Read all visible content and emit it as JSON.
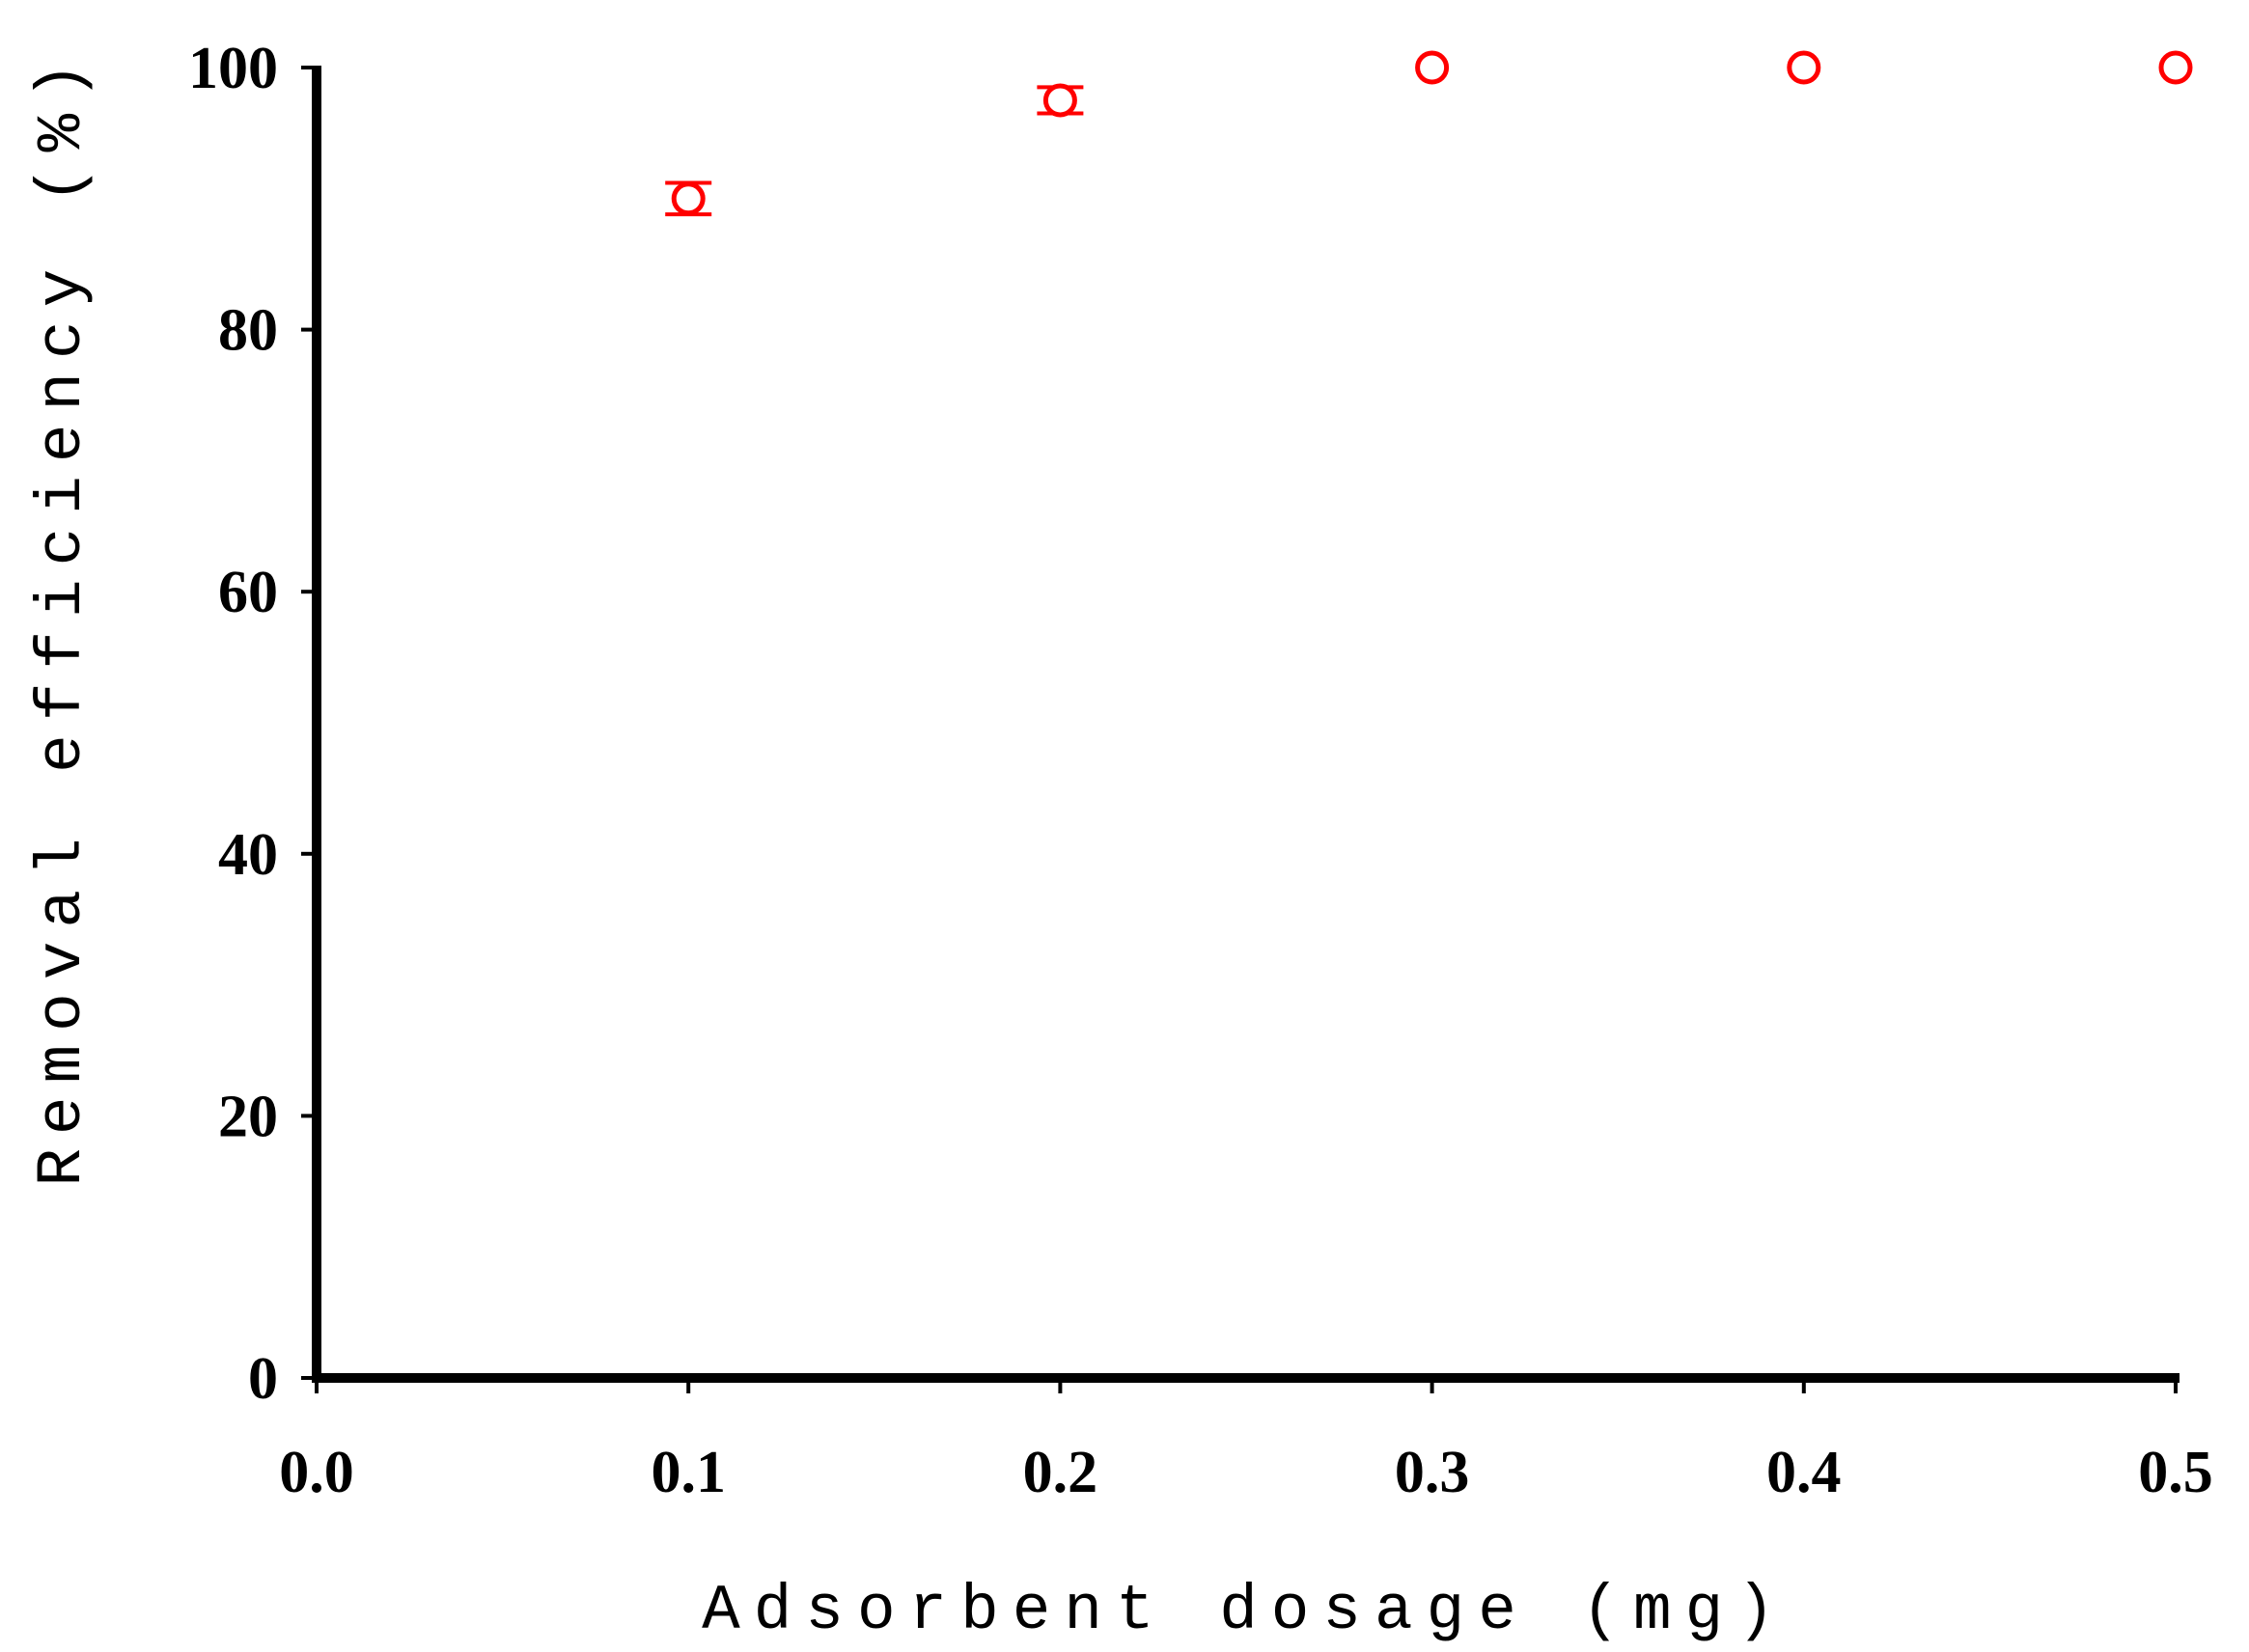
{
  "chart_data": {
    "type": "scatter",
    "title": "",
    "xlabel": "Adsorbent dosage (mg)",
    "ylabel": "Removal efficiency (%)",
    "xlim": [
      0.0,
      0.5
    ],
    "ylim": [
      0,
      100
    ],
    "x_ticks": [
      "0.0",
      "0.1",
      "0.2",
      "0.3",
      "0.4",
      "0.5"
    ],
    "y_ticks": [
      "0",
      "20",
      "40",
      "60",
      "80",
      "100"
    ],
    "grid": false,
    "legend": "none",
    "marker": "open-circle",
    "series": [
      {
        "x": [
          0.1,
          0.2,
          0.3,
          0.4,
          0.5
        ],
        "values": [
          90.0,
          97.5,
          100.0,
          100.0,
          100.0
        ],
        "error": [
          1.2,
          1.0,
          0.0,
          0.0,
          0.0
        ],
        "color": "#ff0000"
      }
    ]
  }
}
